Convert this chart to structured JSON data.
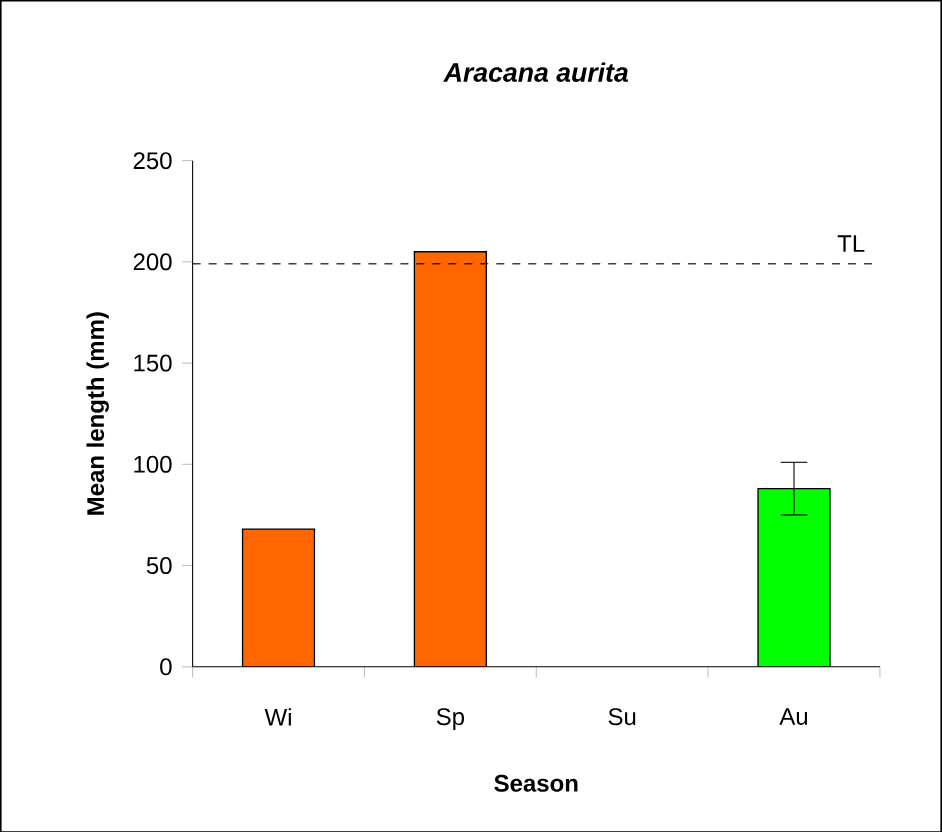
{
  "chart_data": {
    "type": "bar",
    "title": "Aracana aurita",
    "xlabel": "Season",
    "ylabel": "Mean length (mm)",
    "categories": [
      "Wi",
      "Sp",
      "Su",
      "Au"
    ],
    "values": [
      68,
      205,
      null,
      88
    ],
    "colors": [
      "#ff6600",
      "#ff6600",
      null,
      "#00ff00"
    ],
    "errors": [
      null,
      null,
      null,
      13
    ],
    "ylim": [
      0,
      250
    ],
    "yticks": [
      0,
      50,
      100,
      150,
      200,
      250
    ],
    "ref_lines": [
      {
        "axis": "y",
        "value": 199,
        "label": "TL",
        "line_style": "dashed"
      }
    ]
  }
}
